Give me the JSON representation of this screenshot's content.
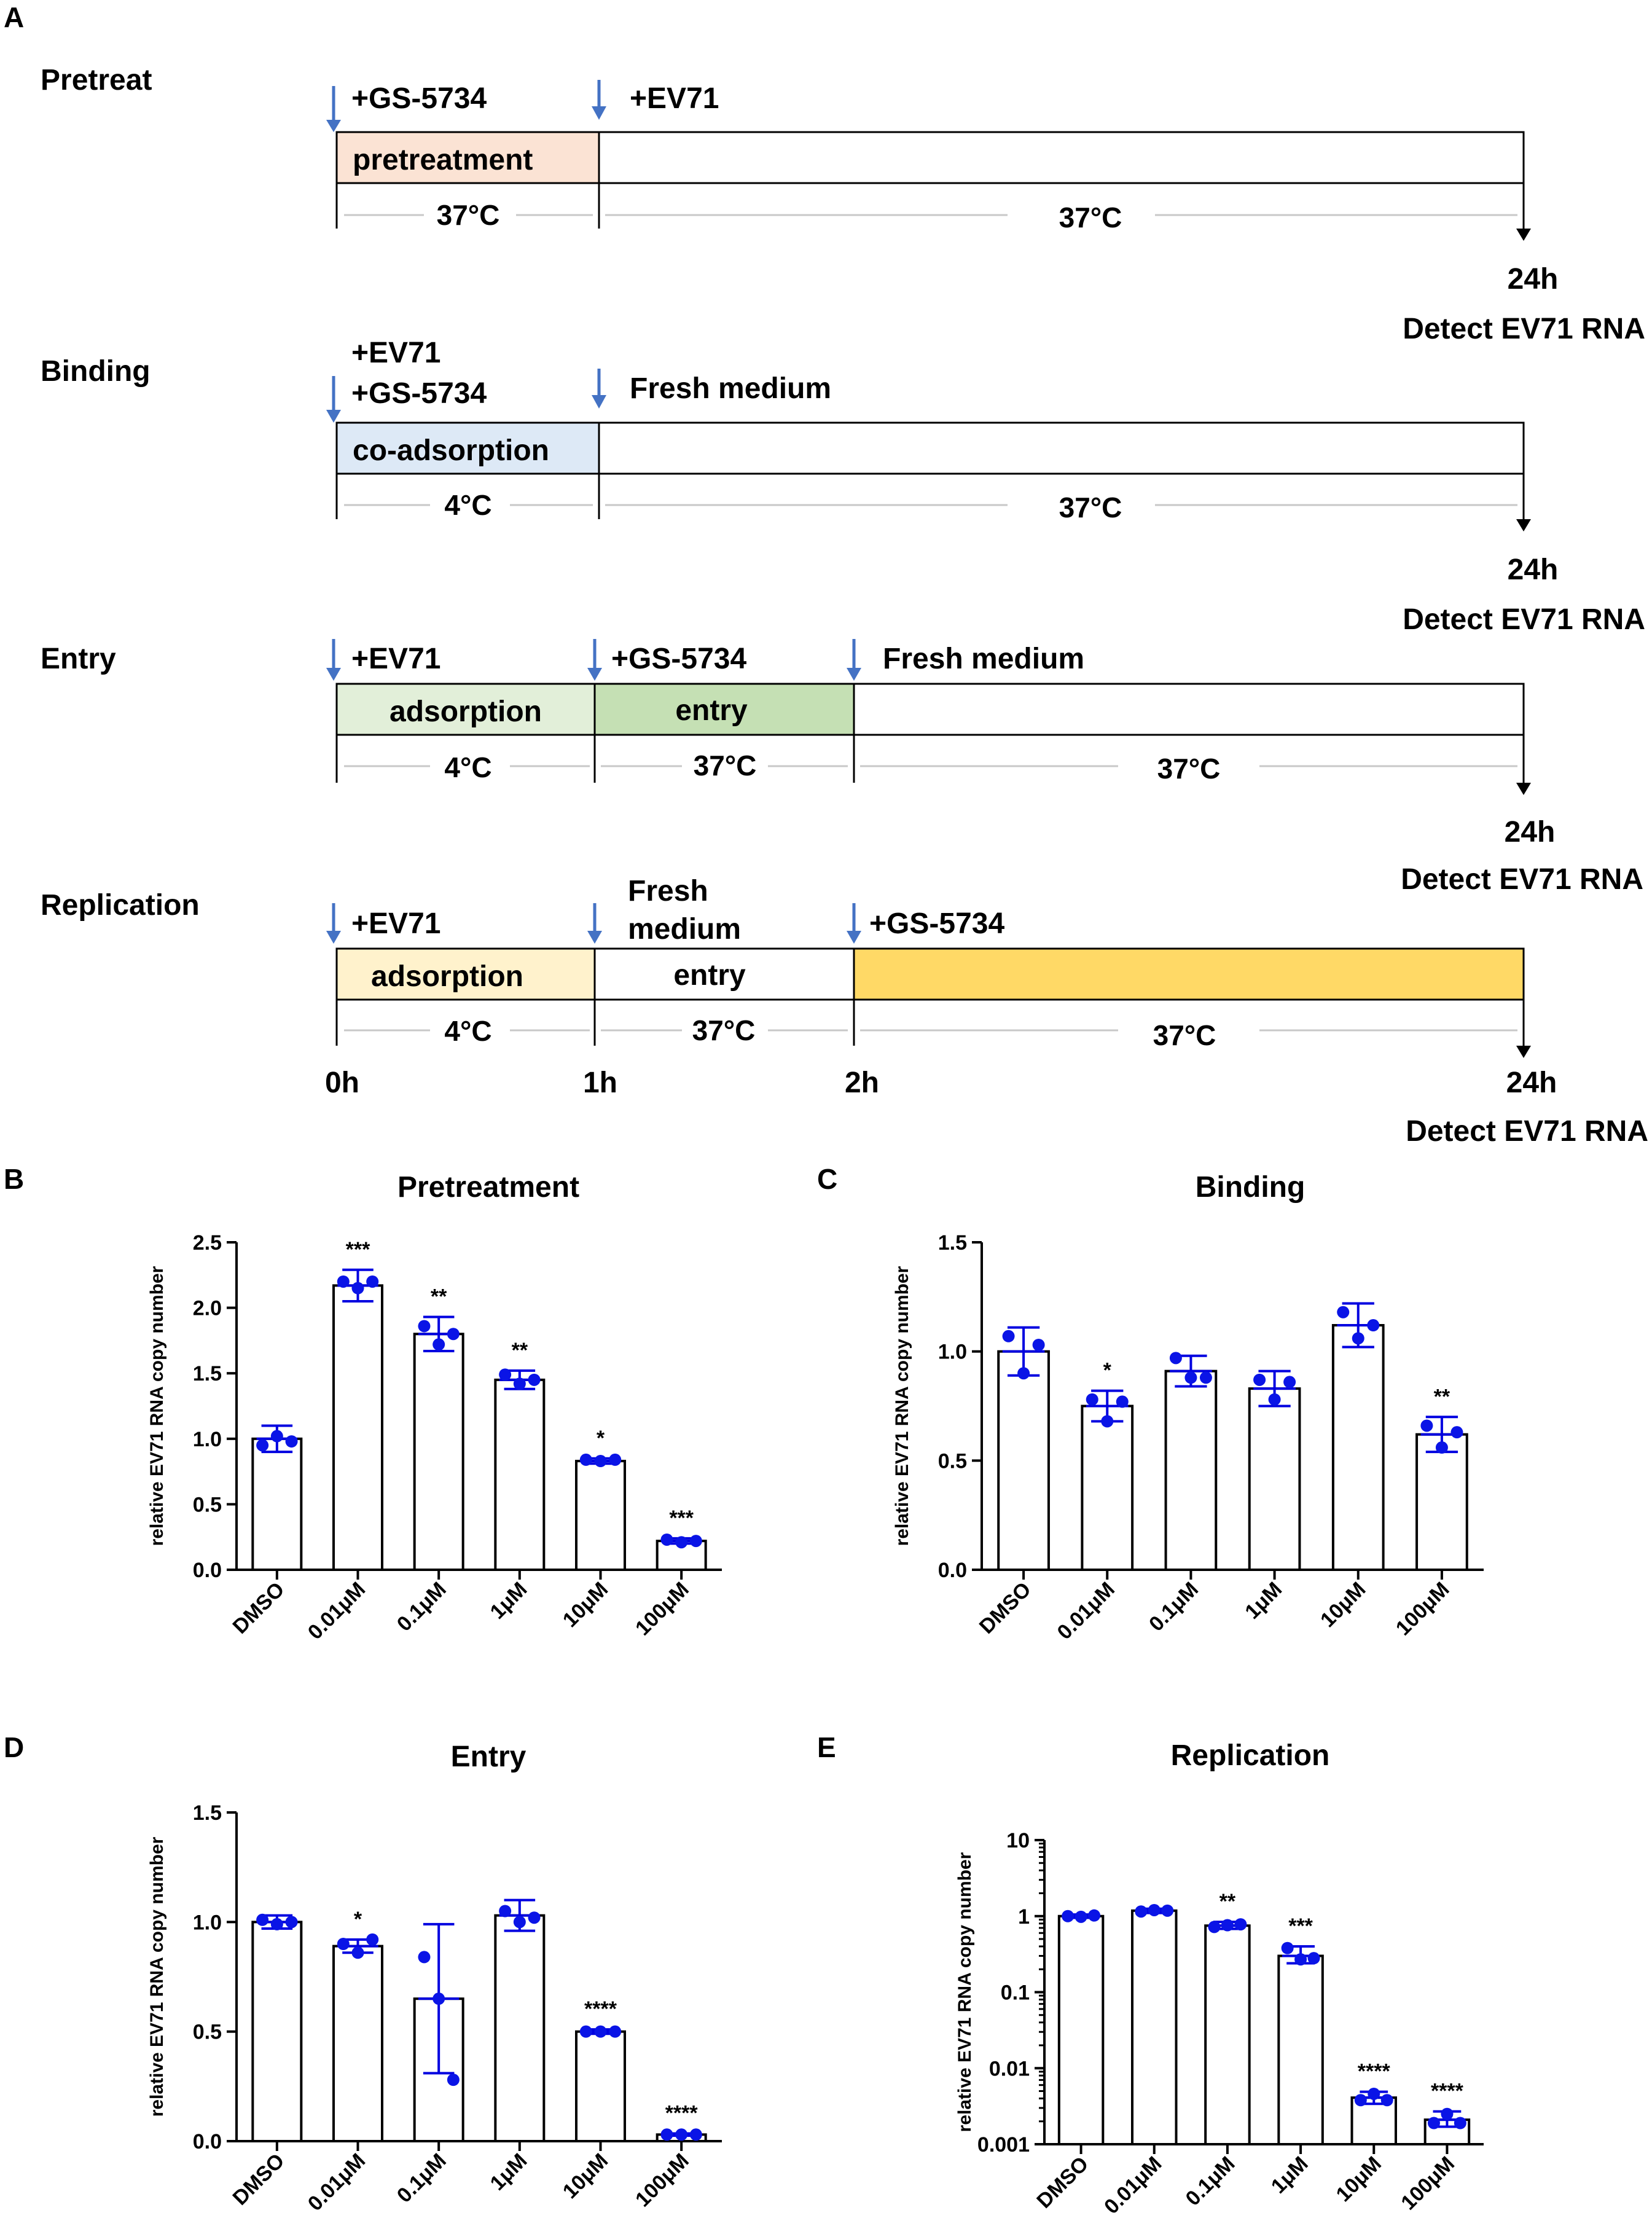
{
  "panel_letters": [
    "A",
    "B",
    "C",
    "D",
    "E"
  ],
  "schematic": {
    "rows": [
      {
        "name": "Pretreat",
        "arrow_labels": [
          "+GS-5734",
          "+EV71"
        ],
        "segments": [
          {
            "label": "pretreatment",
            "color": "#fbe3d4",
            "temp": "37°C"
          },
          {
            "label": "",
            "color": "#ffffff",
            "temp": "37°C"
          }
        ],
        "end_time": "24h",
        "end_label": "Detect EV71 RNA"
      },
      {
        "name": "Binding",
        "arrow_labels": [
          "+EV71",
          "+GS-5734",
          "Fresh medium"
        ],
        "segments": [
          {
            "label": "co-adsorption",
            "color": "#dde9f6",
            "temp": "4°C"
          },
          {
            "label": "",
            "color": "#ffffff",
            "temp": "37°C"
          }
        ],
        "end_time": "24h",
        "end_label": "Detect EV71 RNA"
      },
      {
        "name": "Entry",
        "arrow_labels": [
          "+EV71",
          "+GS-5734",
          "Fresh medium"
        ],
        "segments": [
          {
            "label": "adsorption",
            "color": "#e2efd9",
            "temp": "4°C"
          },
          {
            "label": "entry",
            "color": "#c5e0b4",
            "temp": "37°C"
          },
          {
            "label": "",
            "color": "#ffffff",
            "temp": "37°C"
          }
        ],
        "end_time": "24h",
        "end_label": "Detect EV71 RNA"
      },
      {
        "name": "Replication",
        "arrow_labels": [
          "+EV71",
          "Fresh",
          "medium",
          "+GS-5734"
        ],
        "segments": [
          {
            "label": "adsorption",
            "color": "#fff2cc",
            "temp": "4°C"
          },
          {
            "label": "entry",
            "color": "#ffffff",
            "temp": "37°C"
          },
          {
            "label": "",
            "color": "#ffd966",
            "temp": "37°C"
          }
        ],
        "end_time": "24h",
        "end_label": "Detect EV71 RNA"
      }
    ],
    "time_labels": [
      "0h",
      "1h",
      "2h"
    ]
  },
  "chart_data": [
    {
      "type": "bar",
      "panel": "B",
      "title": "Pretreatment",
      "ylabel": "relative EV71 RNA copy number",
      "categories": [
        "DMSO",
        "0.01μM",
        "0.1μM",
        "1μM",
        "10μM",
        "100μM"
      ],
      "values": [
        1.0,
        2.17,
        1.8,
        1.45,
        0.83,
        0.22
      ],
      "errors": [
        0.1,
        0.12,
        0.13,
        0.07,
        0.02,
        0.02
      ],
      "points": [
        [
          0.95,
          1.02,
          0.98
        ],
        [
          2.2,
          2.15,
          2.2
        ],
        [
          1.86,
          1.72,
          1.8
        ],
        [
          1.49,
          1.42,
          1.45
        ],
        [
          0.84,
          0.83,
          0.84
        ],
        [
          0.23,
          0.21,
          0.22
        ]
      ],
      "significance": [
        "",
        "***",
        "**",
        "**",
        "*",
        "***"
      ],
      "scale": "linear",
      "ylim": [
        0,
        2.5
      ],
      "yticks": [
        0.0,
        0.5,
        1.0,
        1.5,
        2.0,
        2.5
      ],
      "ytick_labels": [
        "0.0",
        "0.5",
        "1.0",
        "1.5",
        "2.0",
        "2.5"
      ]
    },
    {
      "type": "bar",
      "panel": "C",
      "title": "Binding",
      "ylabel": "relative EV71 RNA copy number",
      "categories": [
        "DMSO",
        "0.01μM",
        "0.1μM",
        "1μM",
        "10μM",
        "100μM"
      ],
      "values": [
        1.0,
        0.75,
        0.91,
        0.83,
        1.12,
        0.62
      ],
      "errors": [
        0.11,
        0.07,
        0.07,
        0.08,
        0.1,
        0.08
      ],
      "points": [
        [
          1.07,
          0.9,
          1.03
        ],
        [
          0.78,
          0.68,
          0.77
        ],
        [
          0.97,
          0.88,
          0.88
        ],
        [
          0.87,
          0.78,
          0.86
        ],
        [
          1.18,
          1.06,
          1.12
        ],
        [
          0.66,
          0.56,
          0.63
        ]
      ],
      "significance": [
        "",
        "*",
        "",
        "",
        "",
        "**"
      ],
      "scale": "linear",
      "ylim": [
        0,
        1.5
      ],
      "yticks": [
        0.0,
        0.5,
        1.0,
        1.5
      ],
      "ytick_labels": [
        "0.0",
        "0.5",
        "1.0",
        "1.5"
      ]
    },
    {
      "type": "bar",
      "panel": "D",
      "title": "Entry",
      "ylabel": "relative EV71 RNA copy number",
      "categories": [
        "DMSO",
        "0.01μM",
        "0.1μM",
        "1μM",
        "10μM",
        "100μM"
      ],
      "values": [
        1.0,
        0.89,
        0.65,
        1.03,
        0.5,
        0.03
      ],
      "errors": [
        0.03,
        0.03,
        0.34,
        0.07,
        0.01,
        0.005
      ],
      "points": [
        [
          1.01,
          0.99,
          1.0
        ],
        [
          0.9,
          0.86,
          0.92
        ],
        [
          0.84,
          0.65,
          0.28
        ],
        [
          1.05,
          1.0,
          1.02
        ],
        [
          0.5,
          0.5,
          0.5
        ],
        [
          0.03,
          0.03,
          0.03
        ]
      ],
      "significance": [
        "",
        "*",
        "",
        "",
        "****",
        "****"
      ],
      "scale": "linear",
      "ylim": [
        0,
        1.5
      ],
      "yticks": [
        0.0,
        0.5,
        1.0,
        1.5
      ],
      "ytick_labels": [
        "0.0",
        "0.5",
        "1.0",
        "1.5"
      ]
    },
    {
      "type": "bar",
      "panel": "E",
      "title": "Replication",
      "ylabel": "relative EV71 RNA copy number",
      "categories": [
        "DMSO",
        "0.01μM",
        "0.1μM",
        "1μM",
        "10μM",
        "100μM"
      ],
      "values": [
        1.0,
        1.18,
        0.75,
        0.3,
        0.0041,
        0.0021
      ],
      "errors_low": [
        0.95,
        1.1,
        0.68,
        0.24,
        0.0034,
        0.0017
      ],
      "errors_high": [
        1.05,
        1.25,
        0.84,
        0.4,
        0.0049,
        0.0027
      ],
      "points": [
        [
          1.0,
          0.98,
          1.02
        ],
        [
          1.15,
          1.2,
          1.18
        ],
        [
          0.72,
          0.76,
          0.78
        ],
        [
          0.38,
          0.27,
          0.28
        ],
        [
          0.0038,
          0.0046,
          0.0038
        ],
        [
          0.0019,
          0.0025,
          0.0019
        ]
      ],
      "significance": [
        "",
        "",
        "**",
        "***",
        "****",
        "****"
      ],
      "scale": "log",
      "ylim": [
        0.001,
        10
      ],
      "yticks": [
        0.001,
        0.01,
        0.1,
        1,
        10
      ],
      "ytick_labels": [
        "0.001",
        "0.01",
        "0.1",
        "1",
        "10"
      ]
    }
  ]
}
